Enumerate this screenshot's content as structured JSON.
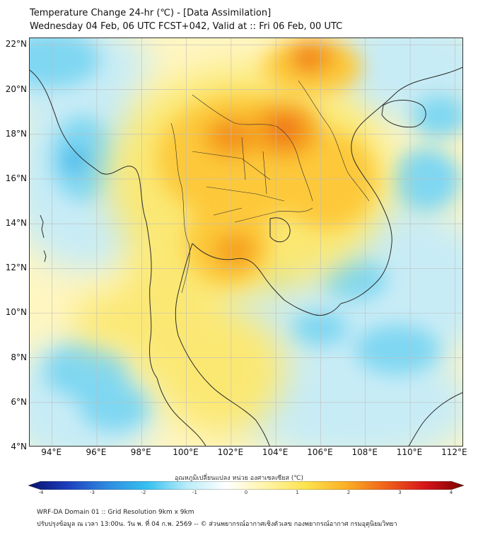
{
  "header": {
    "title_line1": "Temperature Change 24-hr (℃) - [Data Assimilation]",
    "title_line2": "Wednesday 04 Feb, 06 UTC FCST+042, Valid at :: Fri 06 Feb, 00 UTC"
  },
  "map": {
    "lat_labels": [
      "22°N",
      "20°N",
      "18°N",
      "16°N",
      "14°N",
      "12°N",
      "10°N",
      "8°N",
      "6°N",
      "4°N"
    ],
    "lon_labels": [
      "94°E",
      "96°E",
      "98°E",
      "100°E",
      "102°E",
      "104°E",
      "106°E",
      "108°E",
      "110°E",
      "112°E"
    ],
    "lat_range": [
      4,
      22.3
    ],
    "lon_range": [
      93,
      112.4
    ],
    "colors": {
      "background": "#fff6c2",
      "warm_light": "#fbe873",
      "warm_mid": "#fdc93a",
      "warm_strong": "#f6a01e",
      "hot": "#ee6a1a",
      "cool_light": "#c8ecf6",
      "cool_mid": "#7fd7f2",
      "cool_strong": "#3ab4ec",
      "coast": "#2a2a2a",
      "grid": "#bdbdbd"
    }
  },
  "colorbar": {
    "title": "อุณหภูมิเปลี่ยนแปลง หน่วย องศาเซลเซียส (℃)",
    "ticks": [
      "-4",
      "-3",
      "-2",
      "-1",
      "0",
      "1",
      "2",
      "3",
      "4"
    ],
    "min": -4,
    "max": 4,
    "stops": [
      "#08106b",
      "#1d3fbf",
      "#2f8be0",
      "#35c1ef",
      "#b9ecf8",
      "#ffffff",
      "#fff4a8",
      "#fde34f",
      "#fbb125",
      "#f0641a",
      "#d8161a",
      "#7a0000"
    ]
  },
  "footer": {
    "line1": "WRF-DA Domain 01 :: Grid Resolution 9km x 9km",
    "line2": "ปรับปรุงข้อมูล ณ เวลา 13:00น. วัน พ. ที่ 04 ก.พ. 2569 -- © ส่วนพยากรณ์อากาศเชิงตัวเลข กองพยากรณ์อากาศ กรมอุตุนิยมวิทยา"
  }
}
